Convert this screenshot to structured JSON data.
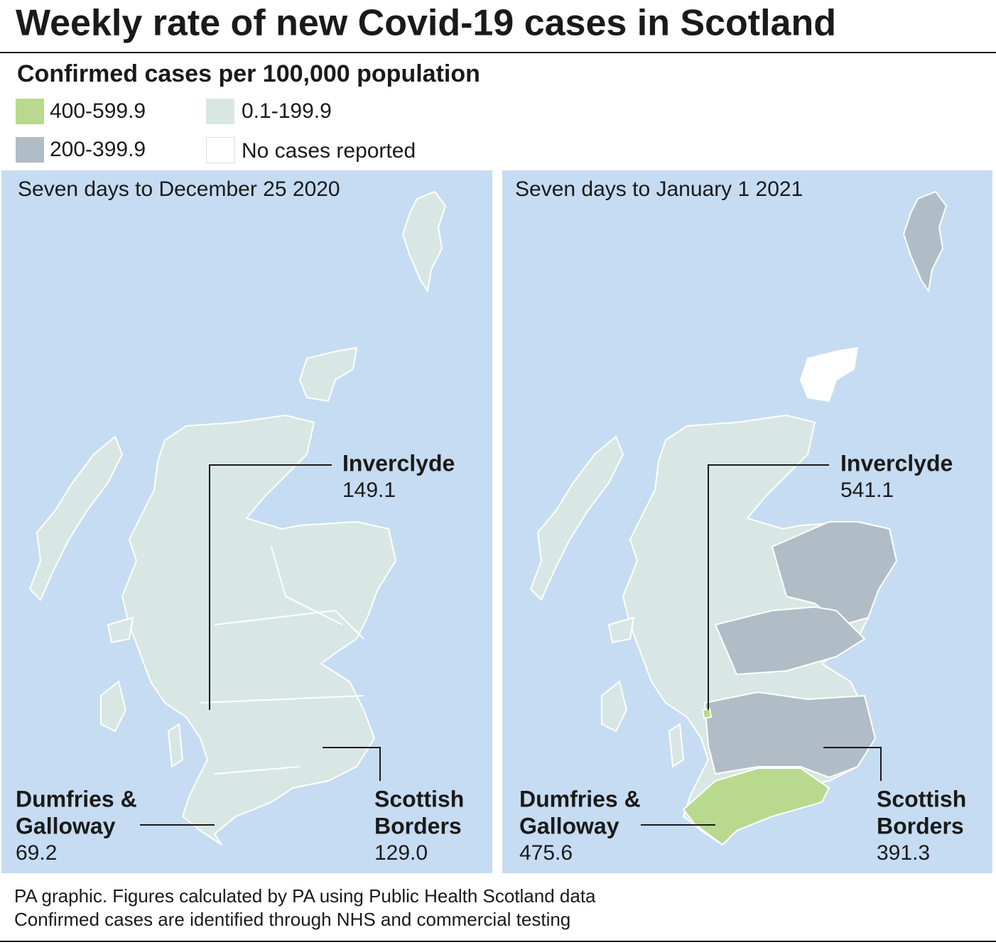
{
  "title": "Weekly rate of new Covid-19 cases in Scotland",
  "legend": {
    "title": "Confirmed cases per 100,000 population",
    "items": [
      {
        "label": "400-599.9",
        "color": "#b9d98f"
      },
      {
        "label": "0.1-199.9",
        "color": "#d8e7e3"
      },
      {
        "label": "200-399.9",
        "color": "#b0bcc6"
      },
      {
        "label": "No cases reported",
        "color": "#ffffff"
      }
    ]
  },
  "panels": [
    {
      "title": "Seven days to December 25 2020",
      "annotations": [
        {
          "label": [
            "Inverclyde"
          ],
          "value": "149.1"
        },
        {
          "label": [
            "Dumfries &",
            "Galloway"
          ],
          "value": "69.2"
        },
        {
          "label": [
            "Scottish",
            "Borders"
          ],
          "value": "129.0"
        }
      ]
    },
    {
      "title": "Seven days to January 1 2021",
      "annotations": [
        {
          "label": [
            "Inverclyde"
          ],
          "value": "541.1"
        },
        {
          "label": [
            "Dumfries &",
            "Galloway"
          ],
          "value": "475.6"
        },
        {
          "label": [
            "Scottish",
            "Borders"
          ],
          "value": "391.3"
        }
      ]
    }
  ],
  "footer": [
    "PA graphic. Figures calculated by PA using Public Health Scotland data",
    "Confirmed cases are identified through NHS and commercial testing"
  ]
}
